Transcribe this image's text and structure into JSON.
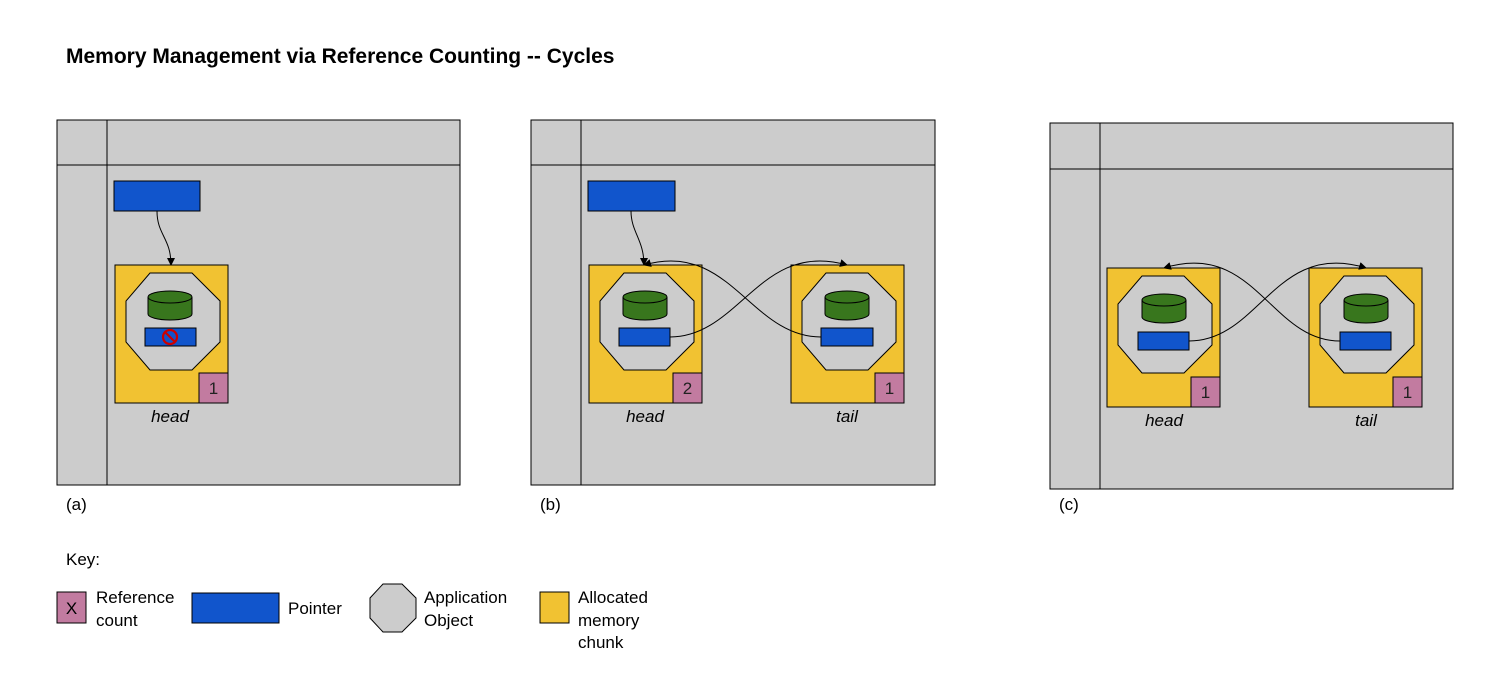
{
  "title": "Memory Management via Reference Counting -- Cycles",
  "colors": {
    "panel": "#cccccc",
    "chunk": "#f1c232",
    "pointer": "#1155cc",
    "object": "#cccccc",
    "disk": "#38761d",
    "refcount": "#c27ba0",
    "nullmark": "#cc0000"
  },
  "panels": [
    {
      "caption": "(a)",
      "chunks": [
        {
          "label": "head",
          "refcount": "1",
          "pointer_null": true
        }
      ]
    },
    {
      "caption": "(b)",
      "chunks": [
        {
          "label": "head",
          "refcount": "2",
          "pointer_null": false
        },
        {
          "label": "tail",
          "refcount": "1",
          "pointer_null": false
        }
      ]
    },
    {
      "caption": "(c)",
      "chunks": [
        {
          "label": "head",
          "refcount": "1",
          "pointer_null": false
        },
        {
          "label": "tail",
          "refcount": "1",
          "pointer_null": false
        }
      ]
    }
  ],
  "key": {
    "heading": "Key:",
    "refcount_symbol": "X",
    "refcount_label": [
      "Reference",
      "count"
    ],
    "pointer_label": [
      "Pointer"
    ],
    "object_label": [
      "Application",
      "Object"
    ],
    "chunk_label": [
      "Allocated",
      "memory",
      "chunk"
    ]
  }
}
